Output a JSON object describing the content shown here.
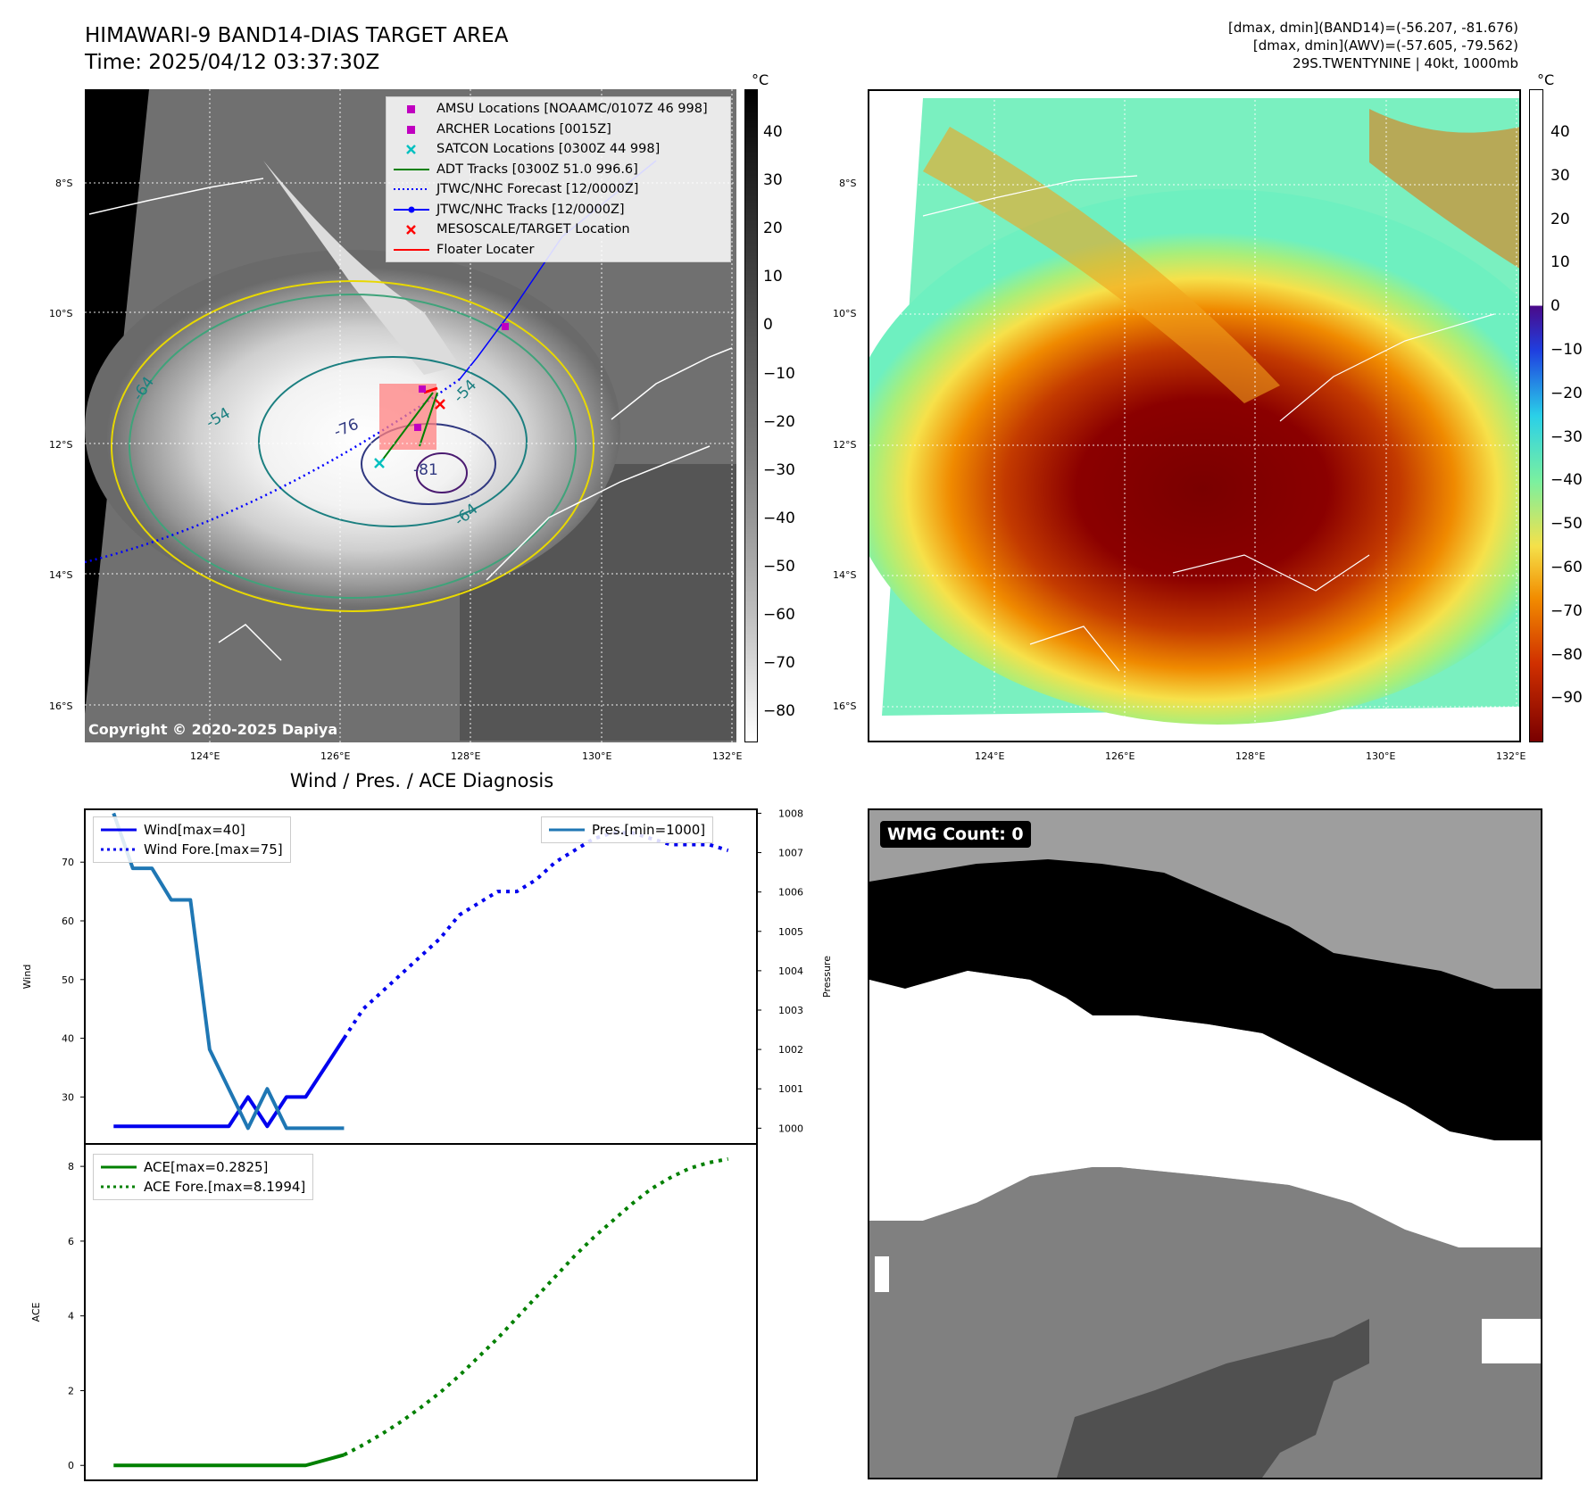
{
  "satellite_panel": {
    "title_line1": "HIMAWARI-9 BAND14-DIAS TARGET AREA",
    "title_line2": "Time: 2025/04/12 03:37:30Z",
    "unit": "°C",
    "lat_labels": [
      "8°S",
      "10°S",
      "12°S",
      "14°S",
      "16°S"
    ],
    "lon_labels": [
      "124°E",
      "126°E",
      "128°E",
      "130°E",
      "132°E"
    ],
    "colorbar_ticks": [
      "40",
      "30",
      "20",
      "10",
      "0",
      "−10",
      "−20",
      "−30",
      "−40",
      "−50",
      "−60",
      "−70",
      "−80"
    ],
    "copyright": "Copyright © 2020-2025 Dapiya",
    "contour_labels": [
      "-76",
      "-81",
      "-54",
      "-54",
      "-64",
      "-64"
    ],
    "legend": [
      {
        "label": "AMSU Locations [NOAAMC/0107Z 46 998]",
        "color": "#c000c0",
        "symbol": "square"
      },
      {
        "label": "ARCHER Locations [0015Z]",
        "color": "#c000c0",
        "symbol": "square"
      },
      {
        "label": "SATCON Locations [0300Z 44 998]",
        "color": "#00c0c0",
        "symbol": "x"
      },
      {
        "label": "ADT Tracks [0300Z 51.0 996.6]",
        "color": "#008000",
        "symbol": "line"
      },
      {
        "label": "JTWC/NHC Forecast [12/0000Z]",
        "color": "#0000ff",
        "symbol": "dotted"
      },
      {
        "label": "JTWC/NHC Tracks [12/0000Z]",
        "color": "#0000ff",
        "symbol": "line-dot"
      },
      {
        "label": "MESOSCALE/TARGET Location",
        "color": "#ff0000",
        "symbol": "x"
      },
      {
        "label": "Floater Locater",
        "color": "#ff0000",
        "symbol": "line"
      }
    ]
  },
  "awv_panel": {
    "info_line1": "[dmax, dmin](BAND14)=(-56.207, -81.676)",
    "info_line2": "[dmax, dmin](AWV)=(-57.605, -79.562)",
    "info_line3": "29S.TWENTYNINE | 40kt, 1000mb",
    "unit": "°C",
    "lat_labels": [
      "8°S",
      "10°S",
      "12°S",
      "14°S",
      "16°S"
    ],
    "lon_labels": [
      "124°E",
      "126°E",
      "128°E",
      "130°E",
      "132°E"
    ],
    "colorbar_ticks": [
      "40",
      "30",
      "20",
      "10",
      "0",
      "−10",
      "−20",
      "−30",
      "−40",
      "−50",
      "−60",
      "−70",
      "−80",
      "−90"
    ]
  },
  "wmg_panel": {
    "label": "WMG Count: 0"
  },
  "chart_data": [
    {
      "type": "line",
      "title": "Wind / Pres. / ACE Diagnosis",
      "ylabel": "Wind",
      "y2label": "Pressure",
      "ylim": [
        22,
        79
      ],
      "y2lim": [
        999.6,
        1008.1
      ],
      "yticks": [
        30,
        40,
        50,
        60,
        70
      ],
      "y2ticks": [
        1000,
        1001,
        1002,
        1003,
        1004,
        1005,
        1006,
        1007,
        1008
      ],
      "x": [
        0,
        1,
        2,
        3,
        4,
        5,
        6,
        7,
        8,
        9,
        10,
        11,
        12,
        13,
        14,
        15,
        16,
        17,
        18,
        19,
        20,
        21,
        22,
        23,
        24,
        25,
        26,
        27,
        28,
        29,
        30,
        31,
        32
      ],
      "series": [
        {
          "name": "Wind[max=40]",
          "style": "solid",
          "color": "#0000ee",
          "x": [
            0,
            1,
            2,
            3,
            4,
            5,
            6,
            7,
            8,
            9,
            10,
            11,
            12
          ],
          "values": [
            25,
            25,
            25,
            25,
            25,
            25,
            25,
            30,
            25,
            30,
            30,
            35,
            40
          ]
        },
        {
          "name": "Wind Fore.[max=75]",
          "style": "dotted",
          "color": "#0000ee",
          "x": [
            12,
            13,
            14,
            15,
            16,
            17,
            18,
            19,
            20,
            21,
            22,
            23,
            24,
            25,
            26,
            27,
            28,
            29,
            30,
            31,
            32
          ],
          "values": [
            40,
            45,
            48,
            51,
            54,
            57,
            61,
            63,
            65,
            65,
            67,
            70,
            72,
            74,
            75,
            75,
            74,
            73,
            73,
            73,
            72
          ]
        },
        {
          "name": "Pres.[min=1000]",
          "style": "solid",
          "color": "#1f77b4",
          "axis": "right",
          "x": [
            0,
            1,
            2,
            3,
            4,
            5,
            6,
            7,
            8,
            9,
            10,
            11,
            12
          ],
          "values": [
            1008,
            1006.6,
            1006.6,
            1005.8,
            1005.8,
            1002,
            1001,
            1000,
            1001,
            1000,
            1000,
            1000,
            1000
          ]
        }
      ]
    },
    {
      "type": "line",
      "ylabel": "ACE",
      "ylim": [
        -0.4,
        8.6
      ],
      "yticks": [
        0,
        2,
        4,
        6,
        8
      ],
      "series": [
        {
          "name": "ACE[max=0.2825]",
          "style": "solid",
          "color": "#008000",
          "x": [
            0,
            1,
            2,
            3,
            4,
            5,
            6,
            7,
            8,
            9,
            10,
            11,
            12
          ],
          "values": [
            0,
            0,
            0,
            0,
            0,
            0,
            0,
            0,
            0,
            0,
            0,
            0.14,
            0.2825
          ]
        },
        {
          "name": "ACE Fore.[max=8.1994]",
          "style": "dotted",
          "color": "#008000",
          "x": [
            12,
            13,
            14,
            15,
            16,
            17,
            18,
            19,
            20,
            21,
            22,
            23,
            24,
            25,
            26,
            27,
            28,
            29,
            30,
            31,
            32
          ],
          "values": [
            0.2825,
            0.55,
            0.85,
            1.18,
            1.55,
            1.95,
            2.4,
            2.9,
            3.4,
            3.95,
            4.5,
            5.05,
            5.6,
            6.1,
            6.55,
            7.0,
            7.4,
            7.7,
            7.95,
            8.1,
            8.1994
          ]
        }
      ]
    }
  ]
}
